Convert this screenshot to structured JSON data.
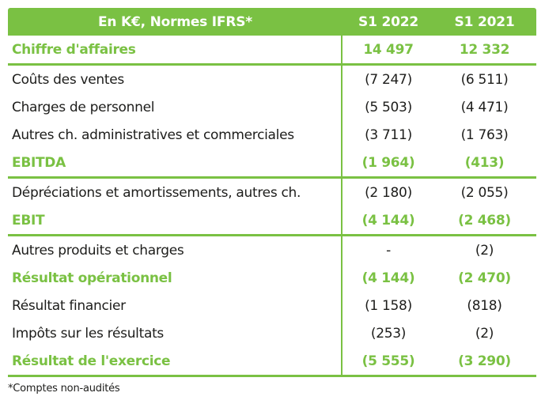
{
  "colors": {
    "accent_green": "#7ac143",
    "text_dark": "#1d1d1b",
    "header_text": "#ffffff",
    "background": "#ffffff"
  },
  "table": {
    "header": {
      "label": "En K€, Normes IFRS*",
      "col_2022": "S1 2022",
      "col_2021": "S1 2021"
    },
    "rows": [
      {
        "label": "Chiffre d'affaires",
        "s1_2022": "14 497",
        "s1_2021": "12 332",
        "emphasis": true,
        "rule_after": true
      },
      {
        "label": "Coûts des ventes",
        "s1_2022": "(7 247)",
        "s1_2021": "(6 511)",
        "emphasis": false,
        "rule_after": false
      },
      {
        "label": "Charges de personnel",
        "s1_2022": "(5 503)",
        "s1_2021": "(4 471)",
        "emphasis": false,
        "rule_after": false
      },
      {
        "label": "Autres ch. administratives et commerciales",
        "s1_2022": "(3 711)",
        "s1_2021": "(1 763)",
        "emphasis": false,
        "rule_after": false
      },
      {
        "label": "EBITDA",
        "s1_2022": "(1 964)",
        "s1_2021": "(413)",
        "emphasis": true,
        "rule_after": true
      },
      {
        "label": "Dépréciations et amortissements, autres ch.",
        "s1_2022": "(2 180)",
        "s1_2021": "(2 055)",
        "emphasis": false,
        "rule_after": false
      },
      {
        "label": "EBIT",
        "s1_2022": "(4 144)",
        "s1_2021": "(2 468)",
        "emphasis": true,
        "rule_after": true
      },
      {
        "label": "Autres produits et charges",
        "s1_2022": "-",
        "s1_2021": "(2)",
        "emphasis": false,
        "rule_after": false
      },
      {
        "label": "Résultat opérationnel",
        "s1_2022": "(4 144)",
        "s1_2021": "(2 470)",
        "emphasis": true,
        "rule_after": false
      },
      {
        "label": "Résultat financier",
        "s1_2022": "(1 158)",
        "s1_2021": "(818)",
        "emphasis": false,
        "rule_after": false
      },
      {
        "label": "Impôts sur les résultats",
        "s1_2022": "(253)",
        "s1_2021": "(2)",
        "emphasis": false,
        "rule_after": false
      },
      {
        "label": "Résultat de l'exercice",
        "s1_2022": "(5 555)",
        "s1_2021": "(3 290)",
        "emphasis": true,
        "rule_after": true
      }
    ],
    "footnote": "*Comptes non-audités"
  }
}
